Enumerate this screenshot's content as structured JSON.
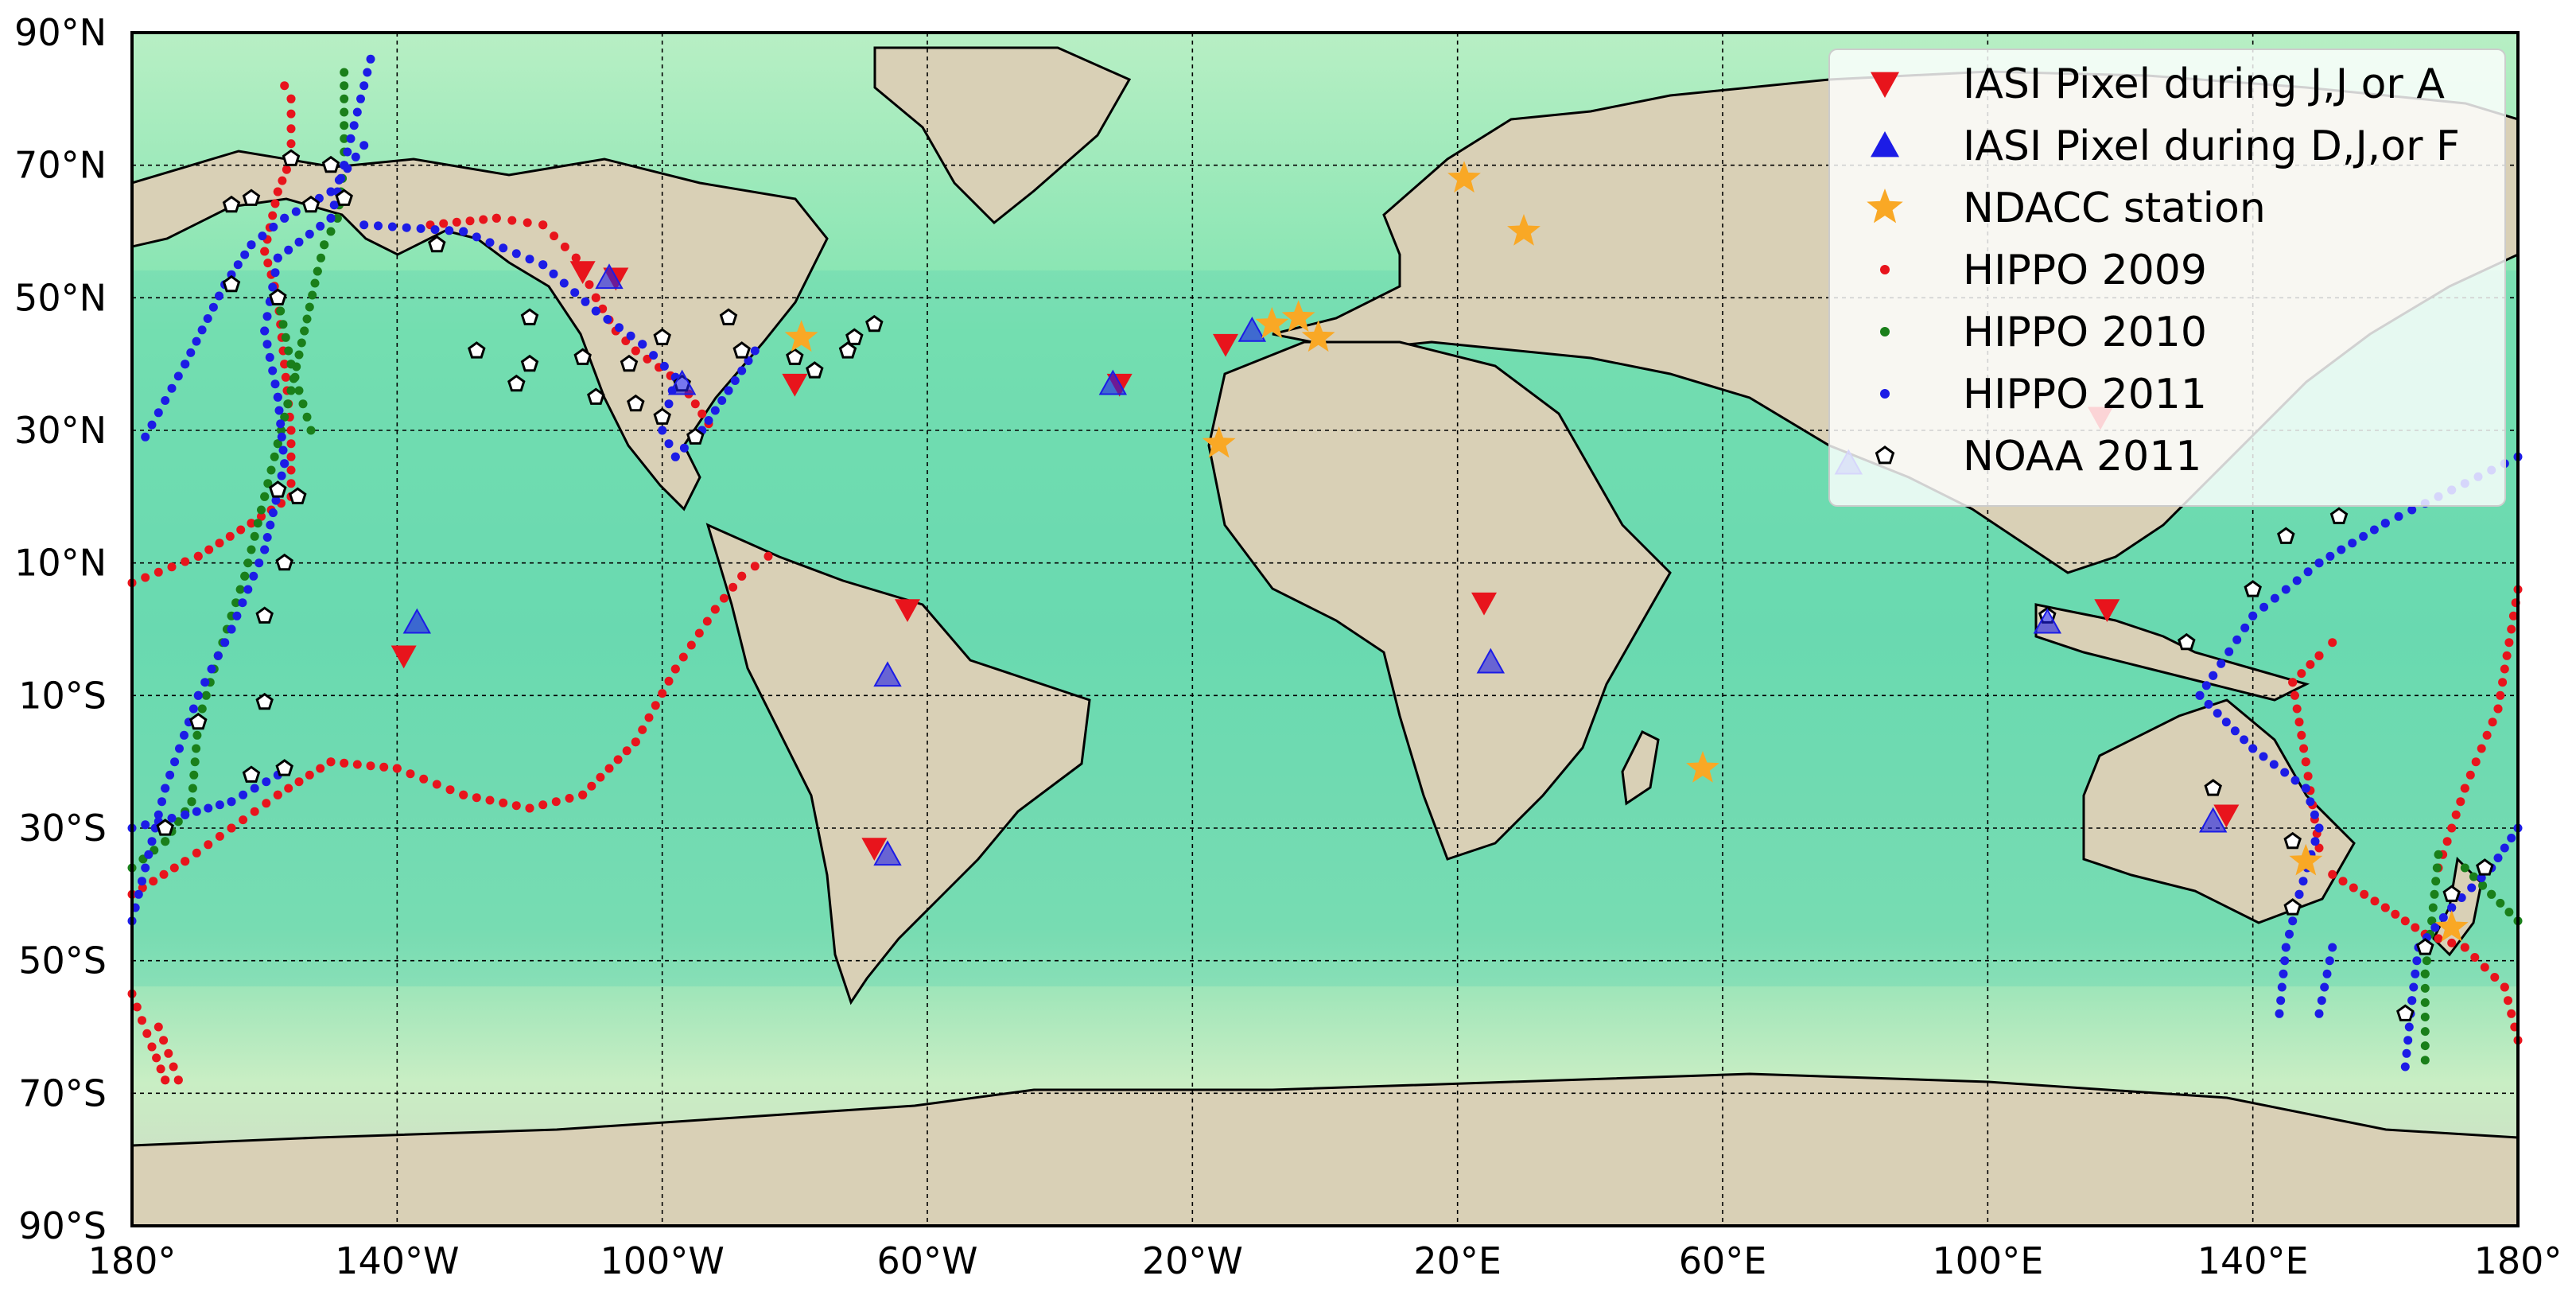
{
  "chart_data": {
    "type": "scatter",
    "projection": "plate-carree",
    "xlim": [
      -180,
      180
    ],
    "ylim": [
      -90,
      90
    ],
    "grid": true,
    "legend_placement": "top-right",
    "x_ticks": [
      {
        "value": -180,
        "label": "180°"
      },
      {
        "value": -140,
        "label": "140°W"
      },
      {
        "value": -100,
        "label": "100°W"
      },
      {
        "value": -60,
        "label": "60°W"
      },
      {
        "value": -20,
        "label": "20°W"
      },
      {
        "value": 20,
        "label": "20°E"
      },
      {
        "value": 60,
        "label": "60°E"
      },
      {
        "value": 100,
        "label": "100°E"
      },
      {
        "value": 140,
        "label": "140°E"
      },
      {
        "value": 180,
        "label": "180°"
      }
    ],
    "y_ticks": [
      {
        "value": 90,
        "label": "90°N"
      },
      {
        "value": 70,
        "label": "70°N"
      },
      {
        "value": 50,
        "label": "50°N"
      },
      {
        "value": 30,
        "label": "30°N"
      },
      {
        "value": 10,
        "label": "10°N"
      },
      {
        "value": -10,
        "label": "10°S"
      },
      {
        "value": -30,
        "label": "30°S"
      },
      {
        "value": -50,
        "label": "50°S"
      },
      {
        "value": -70,
        "label": "70°S"
      },
      {
        "value": -90,
        "label": "90°S"
      }
    ],
    "legend": [
      {
        "label": "IASI Pixel during J,J or A",
        "marker": "triangle-down",
        "color": "#e8141c"
      },
      {
        "label": "IASI Pixel during D,J,or F",
        "marker": "triangle-up",
        "color": "#1c1ce6"
      },
      {
        "label": "NDACC station",
        "marker": "star",
        "color": "#f9a825"
      },
      {
        "label": "HIPPO 2009",
        "marker": "dot",
        "color": "#e8141c"
      },
      {
        "label": "HIPPO 2010",
        "marker": "dot",
        "color": "#1a7f1a"
      },
      {
        "label": "HIPPO 2011",
        "marker": "dot",
        "color": "#1c1ce6"
      },
      {
        "label": "NOAA 2011",
        "marker": "pentagon",
        "color": "#000000"
      }
    ],
    "series": [
      {
        "name": "IASI Pixel during J,J or A",
        "points": [
          [
            -139,
            -4
          ],
          [
            -63,
            3
          ],
          [
            -68,
            -33
          ],
          [
            -107,
            53
          ],
          [
            -80,
            37
          ],
          [
            -31,
            37
          ],
          [
            -15,
            43
          ],
          [
            24,
            4
          ],
          [
            117,
            32
          ],
          [
            118,
            3
          ],
          [
            136,
            -28
          ],
          [
            -112,
            54
          ]
        ]
      },
      {
        "name": "IASI Pixel during D,J,or F",
        "points": [
          [
            -137,
            1
          ],
          [
            -66,
            -7
          ],
          [
            -66,
            -34
          ],
          [
            -108,
            53
          ],
          [
            -97,
            37
          ],
          [
            -32,
            37
          ],
          [
            -11,
            45
          ],
          [
            25,
            -5
          ],
          [
            109,
            1
          ],
          [
            134,
            -29
          ],
          [
            79,
            25
          ]
        ]
      },
      {
        "name": "NDACC station",
        "points": [
          [
            -79,
            44
          ],
          [
            -16,
            28
          ],
          [
            -8,
            46
          ],
          [
            -4,
            47
          ],
          [
            21,
            68
          ],
          [
            30,
            60
          ],
          [
            -1,
            44
          ],
          [
            57,
            -21
          ],
          [
            148,
            -35
          ],
          [
            170,
            -45
          ]
        ]
      },
      {
        "name": "HIPPO 2009",
        "tracks": [
          [
            [
              -180,
              7
            ],
            [
              -170,
              11
            ],
            [
              -162,
              16
            ],
            [
              -156,
              20
            ]
          ],
          [
            [
              -156,
              20
            ],
            [
              -156,
              30
            ],
            [
              -157,
              40
            ],
            [
              -158,
              50
            ],
            [
              -160,
              57
            ],
            [
              -158,
              66
            ],
            [
              -156,
              71
            ],
            [
              -156,
              80
            ],
            [
              -157,
              82
            ]
          ],
          [
            [
              -150,
              -20
            ],
            [
              -140,
              -21
            ],
            [
              -130,
              -25
            ],
            [
              -120,
              -27
            ],
            [
              -112,
              -25
            ],
            [
              -104,
              -17
            ],
            [
              -98,
              -6
            ],
            [
              -92,
              3
            ],
            [
              -88,
              8
            ],
            [
              -84,
              11
            ]
          ],
          [
            [
              -180,
              -40
            ],
            [
              -172,
              -35
            ],
            [
              -165,
              -30
            ],
            [
              -158,
              -25
            ],
            [
              -150,
              -20
            ]
          ],
          [
            [
              -180,
              -55
            ],
            [
              -177,
              -63
            ],
            [
              -175,
              -68
            ],
            [
              -173,
              -68
            ],
            [
              -176,
              -60
            ]
          ],
          [
            [
              -135,
              61
            ],
            [
              -125,
              62
            ],
            [
              -118,
              61
            ],
            [
              -113,
              56
            ],
            [
              -110,
              50
            ],
            [
              -107,
              45
            ],
            [
              -104,
              42
            ],
            [
              -97,
              37
            ],
            [
              -93,
              31
            ]
          ],
          [
            [
              168,
              -36
            ],
            [
              172,
              -24
            ],
            [
              177,
              -12
            ],
            [
              180,
              6
            ]
          ],
          [
            [
              152,
              -37
            ],
            [
              160,
              -42
            ],
            [
              166,
              -46
            ],
            [
              172,
              -48
            ],
            [
              178,
              -54
            ],
            [
              180,
              -62
            ]
          ],
          [
            [
              150,
              -33
            ],
            [
              148,
              -20
            ],
            [
              146,
              -8
            ],
            [
              150,
              -4
            ],
            [
              152,
              -2
            ]
          ]
        ]
      },
      {
        "name": "HIPPO 2010",
        "tracks": [
          [
            [
              -148,
              84
            ],
            [
              -148,
              70
            ],
            [
              -149,
              62
            ],
            [
              -151,
              58
            ],
            [
              -152,
              54
            ]
          ],
          [
            [
              -152,
              54
            ],
            [
              -154,
              45
            ],
            [
              -156,
              36
            ],
            [
              -158,
              28
            ],
            [
              -160,
              20
            ],
            [
              -163,
              8
            ],
            [
              -167,
              -4
            ],
            [
              -170,
              -14
            ],
            [
              -171,
              -26
            ],
            [
              -175,
              -32
            ],
            [
              -180,
              -36
            ]
          ],
          [
            [
              -158,
              50
            ],
            [
              -156,
              40
            ],
            [
              -153,
              30
            ]
          ],
          [
            [
              168,
              -34
            ],
            [
              167,
              -44
            ],
            [
              166,
              -52
            ],
            [
              166,
              -65
            ]
          ],
          [
            [
              172,
              -36
            ],
            [
              176,
              -40
            ],
            [
              180,
              -44
            ]
          ]
        ]
      },
      {
        "name": "HIPPO 2011",
        "tracks": [
          [
            [
              -144,
              86
            ],
            [
              -148,
              70
            ],
            [
              -150,
              62
            ],
            [
              -158,
              56
            ],
            [
              -160,
              45
            ],
            [
              -158,
              35
            ],
            [
              -157,
              25
            ],
            [
              -160,
              12
            ],
            [
              -165,
              0
            ],
            [
              -170,
              -10
            ],
            [
              -175,
              -24
            ],
            [
              -180,
              -44
            ]
          ],
          [
            [
              -180,
              -30
            ],
            [
              -172,
              -28
            ],
            [
              -165,
              -26
            ],
            [
              -158,
              -22
            ]
          ],
          [
            [
              -178,
              29
            ],
            [
              -172,
              40
            ],
            [
              -166,
              52
            ],
            [
              -162,
              58
            ],
            [
              -157,
              62
            ],
            [
              -150,
              66
            ],
            [
              -145,
              73
            ]
          ],
          [
            [
              -145,
              61
            ],
            [
              -130,
              60
            ],
            [
              -118,
              55
            ],
            [
              -110,
              48
            ],
            [
              -103,
              43
            ],
            [
              -98,
              38
            ],
            [
              -100,
              30
            ],
            [
              -98,
              26
            ],
            [
              -94,
              30
            ],
            [
              -90,
              36
            ],
            [
              -86,
              42
            ]
          ],
          [
            [
              180,
              26
            ],
            [
              170,
              21
            ],
            [
              160,
              16
            ],
            [
              150,
              10
            ],
            [
              140,
              2
            ],
            [
              134,
              -7
            ],
            [
              132,
              -10
            ]
          ],
          [
            [
              180,
              -30
            ],
            [
              176,
              -36
            ],
            [
              170,
              -42
            ],
            [
              165,
              -48
            ]
          ],
          [
            [
              132,
              -10
            ],
            [
              140,
              -18
            ],
            [
              148,
              -24
            ],
            [
              150,
              -30
            ],
            [
              147,
              -40
            ],
            [
              145,
              -48
            ],
            [
              144,
              -58
            ]
          ],
          [
            [
              165,
              -48
            ],
            [
              164,
              -56
            ],
            [
              163,
              -66
            ]
          ],
          [
            [
              152,
              -48
            ],
            [
              150,
              -58
            ]
          ]
        ]
      },
      {
        "name": "NOAA 2011",
        "points": [
          [
            -165,
            52
          ],
          [
            -158,
            50
          ],
          [
            -153,
            64
          ],
          [
            -156,
            71
          ],
          [
            -148,
            65
          ],
          [
            -165,
            64
          ],
          [
            -162,
            65
          ],
          [
            -150,
            70
          ],
          [
            -134,
            58
          ],
          [
            -122,
            37
          ],
          [
            -120,
            47
          ],
          [
            -112,
            41
          ],
          [
            -105,
            40
          ],
          [
            -104,
            34
          ],
          [
            -100,
            44
          ],
          [
            -97,
            37
          ],
          [
            -95,
            29
          ],
          [
            -90,
            47
          ],
          [
            -88,
            42
          ],
          [
            -80,
            41
          ],
          [
            -77,
            39
          ],
          [
            -72,
            42
          ],
          [
            -68,
            46
          ],
          [
            -71,
            44
          ],
          [
            -155,
            20
          ],
          [
            -158,
            21
          ],
          [
            -170,
            -14
          ],
          [
            -175,
            -30
          ],
          [
            -162,
            -22
          ],
          [
            -157,
            -21
          ],
          [
            -160,
            2
          ],
          [
            -157,
            10
          ],
          [
            -160,
            -11
          ],
          [
            109,
            2
          ],
          [
            130,
            -2
          ],
          [
            140,
            6
          ],
          [
            145,
            14
          ],
          [
            153,
            17
          ],
          [
            146,
            -32
          ],
          [
            146,
            -42
          ],
          [
            163,
            -58
          ],
          [
            166,
            -48
          ],
          [
            170,
            -40
          ],
          [
            175,
            -36
          ],
          [
            134,
            -24
          ],
          [
            -100,
            32
          ],
          [
            -110,
            35
          ],
          [
            -120,
            40
          ],
          [
            -128,
            42
          ]
        ]
      }
    ]
  }
}
